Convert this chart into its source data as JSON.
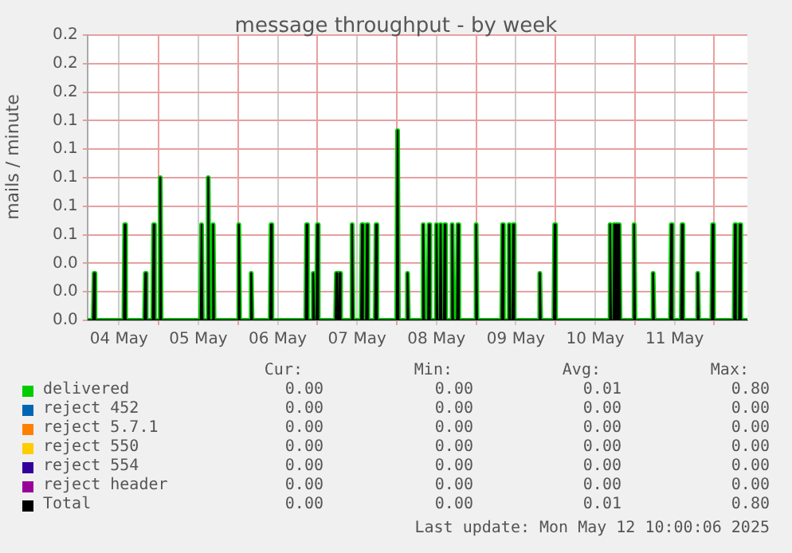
{
  "chart_data": {
    "type": "line",
    "title": "message throughput - by week",
    "ylabel": "mails / minute",
    "x": [
      "--05-04T02:30",
      "--05-04T04:15",
      "--05-04T04:30",
      "--05-04T04:45",
      "--05-04T13:30",
      "--05-04T13:45",
      "--05-04T14:00",
      "--05-04T19:45",
      "--05-04T20:00",
      "--05-04T20:15",
      "--05-04T22:15",
      "--05-04T22:30",
      "--05-04T22:45",
      "--05-05T00:15",
      "--05-05T00:30",
      "--05-05T00:45",
      "--05-05T12:45",
      "--05-05T13:00",
      "--05-05T13:15",
      "--05-05T14:45",
      "--05-05T15:00",
      "--05-05T15:15",
      "--05-05T16:15",
      "--05-05T16:30",
      "--05-05T16:45",
      "--05-06T00:00",
      "--05-06T00:15",
      "--05-06T00:30",
      "--05-06T03:45",
      "--05-06T04:00",
      "--05-06T04:15",
      "--05-06T09:45",
      "--05-06T10:00",
      "--05-06T10:15",
      "--05-06T20:30",
      "--05-06T20:45",
      "--05-06T21:00",
      "--05-06T22:30",
      "--05-06T22:45",
      "--05-06T23:00",
      "--05-06T23:45",
      "--05-07T00:00",
      "--05-07T00:15",
      "--05-07T05:30",
      "--05-07T05:45",
      "--05-07T06:00",
      "--05-07T06:30",
      "--05-07T06:45",
      "--05-07T07:00",
      "--05-07T10:15",
      "--05-07T10:30",
      "--05-07T10:45",
      "--05-07T13:15",
      "--05-07T13:30",
      "--05-07T13:45",
      "--05-07T14:45",
      "--05-07T15:00",
      "--05-07T15:15",
      "--05-07T17:30",
      "--05-07T17:45",
      "--05-07T18:00",
      "--05-08T00:00",
      "--05-08T00:15",
      "--05-08T00:30",
      "--05-08T03:00",
      "--05-08T03:15",
      "--05-08T03:30",
      "--05-08T07:45",
      "--05-08T08:00",
      "--05-08T08:15",
      "--05-08T09:30",
      "--05-08T09:45",
      "--05-08T10:00",
      "--05-08T11:45",
      "--05-08T12:00",
      "--05-08T12:15",
      "--05-08T13:00",
      "--05-08T13:15",
      "--05-08T13:30",
      "--05-08T14:15",
      "--05-08T14:30",
      "--05-08T14:45",
      "--05-08T16:30",
      "--05-08T16:45",
      "--05-08T17:00",
      "--05-08T18:15",
      "--05-08T18:30",
      "--05-08T18:45",
      "--05-08T23:45",
      "--05-09T00:00",
      "--05-09T00:15",
      "--05-09T07:45",
      "--05-09T08:00",
      "--05-09T08:15",
      "--05-09T09:45",
      "--05-09T10:00",
      "--05-09T10:15",
      "--05-09T11:00",
      "--05-09T11:15",
      "--05-09T11:30",
      "--05-09T19:00",
      "--05-09T19:15",
      "--05-09T19:30",
      "--05-09T23:30",
      "--05-09T23:45",
      "--05-10T00:00",
      "--05-10T16:15",
      "--05-10T16:30",
      "--05-10T16:45",
      "--05-10T17:30",
      "--05-10T17:45",
      "--05-10T18:00",
      "--05-10T18:15",
      "--05-10T18:30",
      "--05-10T18:45",
      "--05-10T19:00",
      "--05-10T19:15",
      "--05-10T19:30",
      "--05-10T23:30",
      "--05-10T23:45",
      "--05-11T00:00",
      "--05-11T05:15",
      "--05-11T05:30",
      "--05-11T05:45",
      "--05-11T10:45",
      "--05-11T11:00",
      "--05-11T11:15",
      "--05-11T14:00",
      "--05-11T14:15",
      "--05-11T14:30",
      "--05-11T18:45",
      "--05-11T19:00",
      "--05-11T19:15",
      "--05-11T23:15",
      "--05-11T23:30",
      "--05-11T23:45",
      "--05-12T06:00",
      "--05-12T06:15",
      "--05-12T06:30",
      "--05-12T07:30",
      "--05-12T07:45",
      "--05-12T08:00",
      "--05-12T10:00"
    ],
    "series": [
      {
        "name": "delivered",
        "color": "#00cc00",
        "values": [
          0,
          0,
          0.033,
          0,
          0,
          0.067,
          0,
          0,
          0.033,
          0,
          0,
          0.067,
          0,
          0,
          0.1,
          0,
          0,
          0.067,
          0,
          0,
          0.1,
          0,
          0,
          0.067,
          0,
          0,
          0.067,
          0,
          0,
          0.033,
          0,
          0,
          0.067,
          0,
          0,
          0.067,
          0,
          0,
          0.033,
          0,
          0,
          0.067,
          0,
          0,
          0.033,
          0,
          0,
          0.033,
          0,
          0,
          0.067,
          0,
          0,
          0.067,
          0,
          0,
          0.067,
          0,
          0,
          0.067,
          0,
          0,
          0.133,
          0,
          0,
          0.033,
          0,
          0,
          0.067,
          0,
          0,
          0.067,
          0,
          0,
          0.067,
          0,
          0,
          0.067,
          0,
          0,
          0.067,
          0,
          0,
          0.067,
          0,
          0,
          0.067,
          0,
          0,
          0.067,
          0,
          0,
          0.067,
          0,
          0,
          0.067,
          0,
          0,
          0.067,
          0,
          0,
          0.033,
          0,
          0,
          0.067,
          0,
          0,
          0.067,
          0,
          0,
          0.067,
          0,
          0,
          0.067,
          0,
          0,
          0.067,
          0,
          0,
          0.067,
          0,
          0,
          0.033,
          0,
          0,
          0.067,
          0,
          0,
          0.067,
          0,
          0,
          0.033,
          0,
          0,
          0.067,
          0,
          0,
          0.067,
          0,
          0,
          0.067,
          0,
          0
        ]
      },
      {
        "name": "reject 452",
        "color": "#0066b3",
        "values": [
          null,
          null,
          null,
          null,
          null,
          null,
          null,
          null,
          null,
          null,
          null,
          null,
          null,
          null,
          null,
          null,
          null,
          null,
          null,
          null,
          null,
          null,
          null,
          null,
          null,
          null,
          null,
          null,
          null,
          null,
          null,
          null,
          null,
          null,
          null,
          null,
          null,
          null,
          null,
          null,
          null,
          null,
          null,
          null,
          null,
          null,
          null,
          null,
          null,
          null,
          null,
          null,
          null,
          null,
          null,
          null,
          null,
          null,
          null,
          null,
          null,
          null,
          null,
          null,
          null,
          null,
          null,
          null,
          null,
          null,
          null,
          null,
          null,
          null,
          null,
          null,
          null,
          null,
          null,
          null,
          null,
          null,
          null,
          null,
          null,
          null,
          null,
          null,
          null,
          null,
          null,
          null,
          null,
          null,
          null,
          null,
          null,
          null,
          null,
          null,
          null,
          null,
          null,
          null,
          null,
          null,
          null,
          null,
          null,
          null,
          null,
          null,
          null,
          null,
          null,
          null,
          null,
          null,
          null,
          null,
          null,
          null,
          null,
          null,
          null,
          null,
          null,
          null,
          null,
          null,
          null,
          null,
          null,
          null,
          null,
          null,
          null,
          null,
          null,
          null,
          null,
          null,
          null
        ]
      },
      {
        "name": "reject 5.7.1",
        "color": "#ff8000",
        "values": [
          null,
          null,
          null,
          null,
          null,
          null,
          null,
          null,
          null,
          null,
          null,
          null,
          null,
          null,
          null,
          null,
          null,
          null,
          null,
          null,
          null,
          null,
          null,
          null,
          null,
          null,
          null,
          null,
          null,
          null,
          null,
          null,
          null,
          null,
          null,
          null,
          null,
          null,
          null,
          null,
          null,
          null,
          null,
          null,
          null,
          null,
          null,
          null,
          null,
          null,
          null,
          null,
          null,
          null,
          null,
          null,
          null,
          null,
          null,
          null,
          null,
          null,
          null,
          null,
          null,
          null,
          null,
          null,
          null,
          null,
          null,
          null,
          null,
          null,
          null,
          null,
          null,
          null,
          null,
          null,
          null,
          null,
          null,
          null,
          null,
          null,
          null,
          null,
          null,
          null,
          null,
          null,
          null,
          null,
          null,
          null,
          null,
          null,
          null,
          null,
          null,
          null,
          null,
          null,
          null,
          null,
          null,
          null,
          null,
          null,
          null,
          null,
          null,
          null,
          null,
          null,
          null,
          null,
          null,
          null,
          null,
          null,
          null,
          null,
          null,
          null,
          null,
          null,
          null,
          null,
          null,
          null,
          null,
          null,
          null,
          null,
          null,
          null,
          null,
          null,
          null,
          null,
          null
        ]
      },
      {
        "name": "reject 550",
        "color": "#ffcc00",
        "values": [
          null,
          null,
          null,
          null,
          null,
          null,
          null,
          null,
          null,
          null,
          null,
          null,
          null,
          null,
          null,
          null,
          null,
          null,
          null,
          null,
          null,
          null,
          null,
          null,
          null,
          null,
          null,
          null,
          null,
          null,
          null,
          null,
          null,
          null,
          null,
          null,
          null,
          null,
          null,
          null,
          null,
          null,
          null,
          null,
          null,
          null,
          null,
          null,
          null,
          null,
          null,
          null,
          null,
          null,
          null,
          null,
          null,
          null,
          null,
          null,
          null,
          null,
          null,
          null,
          null,
          null,
          null,
          null,
          null,
          null,
          null,
          null,
          null,
          null,
          null,
          null,
          null,
          null,
          null,
          null,
          null,
          null,
          null,
          null,
          null,
          null,
          null,
          null,
          null,
          null,
          null,
          null,
          null,
          null,
          null,
          null,
          null,
          null,
          null,
          null,
          null,
          null,
          null,
          null,
          null,
          null,
          null,
          null,
          null,
          null,
          null,
          null,
          null,
          null,
          null,
          null,
          null,
          null,
          null,
          null,
          null,
          null,
          null,
          null,
          null,
          null,
          null,
          null,
          null,
          null,
          null,
          null,
          null,
          null,
          null,
          null,
          null,
          null,
          null,
          null,
          null,
          null,
          null
        ]
      },
      {
        "name": "reject 554",
        "color": "#330099",
        "values": [
          null,
          null,
          null,
          null,
          null,
          null,
          null,
          null,
          null,
          null,
          null,
          null,
          null,
          null,
          null,
          null,
          null,
          null,
          null,
          null,
          null,
          null,
          null,
          null,
          null,
          null,
          null,
          null,
          null,
          null,
          null,
          null,
          null,
          null,
          null,
          null,
          null,
          null,
          null,
          null,
          null,
          null,
          null,
          null,
          null,
          null,
          null,
          null,
          null,
          null,
          null,
          null,
          null,
          null,
          null,
          null,
          null,
          null,
          null,
          null,
          null,
          null,
          null,
          null,
          null,
          null,
          null,
          null,
          null,
          null,
          null,
          null,
          null,
          null,
          null,
          null,
          null,
          null,
          null,
          null,
          null,
          null,
          null,
          null,
          null,
          null,
          null,
          null,
          null,
          null,
          null,
          null,
          null,
          null,
          null,
          null,
          null,
          null,
          null,
          null,
          null,
          null,
          null,
          null,
          null,
          null,
          null,
          null,
          null,
          null,
          null,
          null,
          null,
          null,
          null,
          null,
          null,
          null,
          null,
          null,
          null,
          null,
          null,
          null,
          null,
          null,
          null,
          null,
          null,
          null,
          null,
          null,
          null,
          null,
          null,
          null,
          null,
          null,
          null,
          null,
          null,
          null,
          null
        ]
      },
      {
        "name": "reject header",
        "color": "#990099",
        "values": [
          null,
          null,
          null,
          null,
          null,
          null,
          null,
          null,
          null,
          null,
          null,
          null,
          null,
          null,
          null,
          null,
          null,
          null,
          null,
          null,
          null,
          null,
          null,
          null,
          null,
          null,
          null,
          null,
          null,
          null,
          null,
          null,
          null,
          null,
          null,
          null,
          null,
          null,
          null,
          null,
          null,
          null,
          null,
          null,
          null,
          null,
          null,
          null,
          null,
          null,
          null,
          null,
          null,
          null,
          null,
          null,
          null,
          null,
          null,
          null,
          null,
          null,
          null,
          null,
          null,
          null,
          null,
          null,
          null,
          null,
          null,
          null,
          null,
          null,
          null,
          null,
          null,
          null,
          null,
          null,
          null,
          null,
          null,
          null,
          null,
          null,
          null,
          null,
          null,
          null,
          null,
          null,
          null,
          null,
          null,
          null,
          null,
          null,
          null,
          null,
          null,
          null,
          null,
          null,
          null,
          null,
          null,
          null,
          null,
          null,
          null,
          null,
          null,
          null,
          null,
          null,
          null,
          null,
          null,
          null,
          null,
          null,
          null,
          null,
          null,
          null,
          null,
          null,
          null,
          null,
          null,
          null,
          null,
          null,
          null,
          null,
          null,
          null,
          null,
          null,
          null,
          null,
          null
        ]
      },
      {
        "name": "Total",
        "color": "#000000",
        "values": [
          0,
          0,
          0.033,
          0,
          0,
          0.067,
          0,
          0,
          0.033,
          0,
          0,
          0.067,
          0,
          0,
          0.1,
          0,
          0,
          0.067,
          0,
          0,
          0.1,
          0,
          0,
          0.067,
          0,
          0,
          0.067,
          0,
          0,
          0.033,
          0,
          0,
          0.067,
          0,
          0,
          0.067,
          0,
          0,
          0.033,
          0,
          0,
          0.067,
          0,
          0,
          0.033,
          0,
          0,
          0.033,
          0,
          0,
          0.067,
          0,
          0,
          0.067,
          0,
          0,
          0.067,
          0,
          0,
          0.067,
          0,
          0,
          0.133,
          0,
          0,
          0.033,
          0,
          0,
          0.067,
          0,
          0,
          0.067,
          0,
          0,
          0.067,
          0,
          0,
          0.067,
          0,
          0,
          0.067,
          0,
          0,
          0.067,
          0,
          0,
          0.067,
          0,
          0,
          0.067,
          0,
          0,
          0.067,
          0,
          0,
          0.067,
          0,
          0,
          0.067,
          0,
          0,
          0.033,
          0,
          0,
          0.067,
          0,
          0,
          0.067,
          0,
          0,
          0.067,
          0,
          0,
          0.067,
          0,
          0,
          0.067,
          0,
          0,
          0.067,
          0,
          0,
          0.033,
          0,
          0,
          0.067,
          0,
          0,
          0.067,
          0,
          0,
          0.033,
          0,
          0,
          0.067,
          0,
          0,
          0.067,
          0,
          0,
          0.067,
          0,
          0
        ]
      }
    ],
    "xlim": [
      "--05-04T02:30",
      "--05-12T10:00"
    ],
    "xticks": [
      {
        "value": "--05-04T12:00",
        "label": "04 May"
      },
      {
        "value": "--05-05T00:00",
        "label": null
      },
      {
        "value": "--05-05T12:00",
        "label": "05 May"
      },
      {
        "value": "--05-06T00:00",
        "label": null
      },
      {
        "value": "--05-06T12:00",
        "label": "06 May"
      },
      {
        "value": "--05-07T00:00",
        "label": null
      },
      {
        "value": "--05-07T12:00",
        "label": "07 May"
      },
      {
        "value": "--05-08T00:00",
        "label": null
      },
      {
        "value": "--05-08T12:00",
        "label": "08 May"
      },
      {
        "value": "--05-09T00:00",
        "label": null
      },
      {
        "value": "--05-09T12:00",
        "label": "09 May"
      },
      {
        "value": "--05-10T00:00",
        "label": null
      },
      {
        "value": "--05-10T12:00",
        "label": "10 May"
      },
      {
        "value": "--05-11T00:00",
        "label": null
      },
      {
        "value": "--05-11T12:00",
        "label": "11 May"
      },
      {
        "value": "--05-12T00:00",
        "label": null
      }
    ],
    "ylim": [
      0,
      0.2
    ],
    "yticks": [
      {
        "value": 0,
        "label": "0.0"
      },
      {
        "value": 0.02,
        "label": "0.0"
      },
      {
        "value": 0.04,
        "label": "0.0"
      },
      {
        "value": 0.06,
        "label": "0.1"
      },
      {
        "value": 0.08,
        "label": "0.1"
      },
      {
        "value": 0.1,
        "label": "0.1"
      },
      {
        "value": 0.12,
        "label": "0.1"
      },
      {
        "value": 0.14,
        "label": "0.1"
      },
      {
        "value": 0.16,
        "label": "0.2"
      },
      {
        "value": 0.18,
        "label": "0.2"
      },
      {
        "value": 0.2,
        "label": "0.2"
      }
    ],
    "grid": true,
    "legend": "bottom",
    "marker": "none",
    "line_style": "solid",
    "annotations": [
      "Cur:",
      "Min:",
      "Avg:",
      "Max:",
      "0.00",
      "0.00",
      "0.01",
      "0.80",
      "0.00",
      "0.00",
      "0.00",
      "0.00",
      "0.00",
      "0.00",
      "0.00",
      "0.00",
      "0.00",
      "0.00",
      "0.00",
      "0.00",
      "0.00",
      "0.00",
      "0.00",
      "0.00",
      "0.00",
      "0.00",
      "0.00",
      "0.00",
      "0.00",
      "0.00",
      "0.01",
      "0.80",
      "Last update: Mon May 12 10:00:06 2025"
    ]
  }
}
